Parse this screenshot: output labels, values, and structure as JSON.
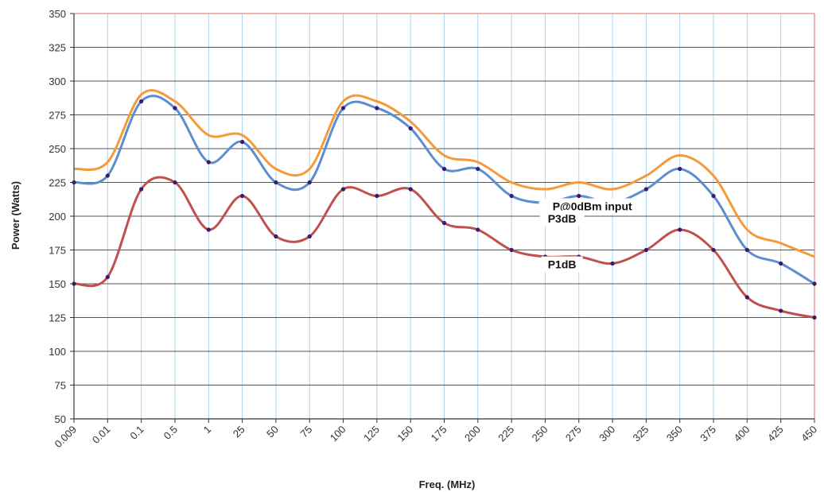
{
  "chart_data": {
    "type": "line",
    "title": "",
    "xlabel": "Freq. (MHz)",
    "ylabel": "Power (Watts)",
    "ylim": [
      50,
      350
    ],
    "yticks": [
      "50",
      "75",
      "100",
      "125",
      "150",
      "175",
      "200",
      "225",
      "250",
      "275",
      "300",
      "325",
      "350"
    ],
    "categories": [
      "0.009",
      "0.01",
      "0.1",
      "0.5",
      "1",
      "25",
      "50",
      "75",
      "100",
      "125",
      "150",
      "175",
      "200",
      "225",
      "250",
      "275",
      "300",
      "325",
      "350",
      "375",
      "400",
      "425",
      "450"
    ],
    "grid": true,
    "legend": "inline labels",
    "series": [
      {
        "name": "P@0dBm input",
        "color": "#f59a3a",
        "markers": false,
        "values": [
          235,
          240,
          290,
          285,
          260,
          260,
          235,
          235,
          285,
          285,
          270,
          245,
          240,
          225,
          220,
          225,
          220,
          230,
          245,
          230,
          190,
          180,
          170
        ]
      },
      {
        "name": "P3dB",
        "color": "#5b8ed0",
        "markers": true,
        "values": [
          225,
          230,
          285,
          280,
          240,
          255,
          225,
          225,
          280,
          280,
          265,
          235,
          235,
          215,
          210,
          215,
          210,
          220,
          235,
          215,
          175,
          165,
          150
        ]
      },
      {
        "name": "P1dB",
        "color": "#c0504d",
        "markers": true,
        "values": [
          150,
          155,
          220,
          225,
          190,
          215,
          185,
          185,
          220,
          215,
          220,
          195,
          190,
          175,
          170,
          170,
          165,
          175,
          190,
          175,
          140,
          130,
          125
        ]
      }
    ]
  }
}
